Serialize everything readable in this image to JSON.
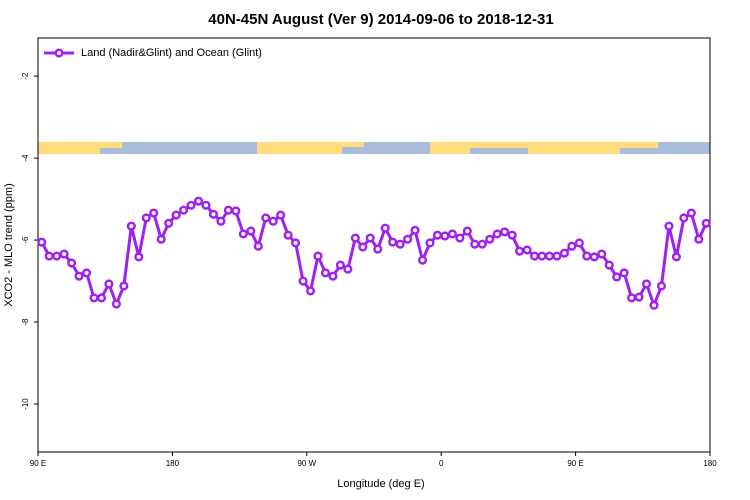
{
  "chart_data": {
    "type": "line",
    "title": "40N-45N August (Ver 9)   2014-09-06 to 2018-12-31",
    "x_label": "Longitude (deg E)",
    "y_label": "XCO2 - MLO trend (ppm)",
    "legend": "top-left",
    "xlim": [
      90,
      540
    ],
    "ylim": [
      -11.17,
      -1.07
    ],
    "xticks": [
      {
        "value": 90,
        "label": "90 E"
      },
      180,
      {
        "value": 270,
        "label": "90 W"
      },
      {
        "value": 360,
        "label": "0"
      },
      {
        "value": 450,
        "label": "90 E"
      },
      {
        "value": 540,
        "label": "180"
      }
    ],
    "yticks": [
      -2,
      -4,
      -6,
      -8,
      -10
    ],
    "x": [
      92.5,
      97.5,
      102.5,
      107.5,
      112.5,
      117.5,
      122.5,
      127.5,
      132.5,
      137.5,
      142.5,
      147.5,
      152.5,
      157.5,
      162.5,
      167.5,
      172.5,
      177.5,
      182.5,
      187.5,
      192.5,
      197.5,
      202.5,
      207.5,
      212.5,
      217.5,
      222.5,
      227.5,
      232.5,
      237.5,
      242.5,
      247.5,
      252.5,
      257.5,
      262.5,
      267.5,
      272.5,
      277.5,
      282.5,
      287.5,
      292.5,
      297.5,
      302.5,
      307.5,
      312.5,
      317.5,
      322.5,
      327.5,
      332.5,
      337.5,
      342.5,
      347.5,
      352.5,
      357.5,
      362.5,
      367.5,
      372.5,
      377.5,
      382.5,
      387.5,
      392.5,
      397.5,
      402.5,
      407.5,
      412.5,
      417.5,
      422.5,
      427.5,
      432.5,
      437.5,
      442.5,
      447.5,
      452.5,
      457.5,
      462.5,
      467.5,
      472.5,
      477.5,
      482.5,
      487.5,
      492.5,
      497.5,
      502.5,
      507.5,
      512.5,
      517.5,
      522.5,
      527.5,
      532.5,
      537.5
    ],
    "series": [
      {
        "name": "Land (Nadir&Glint) and Ocean (Glint)",
        "color": "#a020f0",
        "values": [
          -6.05,
          -6.39,
          -6.39,
          -6.34,
          -6.56,
          -6.88,
          -6.8,
          -7.41,
          -7.41,
          -7.07,
          -7.56,
          -7.12,
          -5.66,
          -6.41,
          -5.46,
          -5.34,
          -5.98,
          -5.59,
          -5.39,
          -5.27,
          -5.15,
          -5.05,
          -5.15,
          -5.37,
          -5.54,
          -5.27,
          -5.29,
          -5.85,
          -5.78,
          -6.15,
          -5.46,
          -5.54,
          -5.39,
          -5.88,
          -6.07,
          -7.0,
          -7.24,
          -6.39,
          -6.8,
          -6.88,
          -6.61,
          -6.71,
          -5.95,
          -6.17,
          -5.95,
          -6.22,
          -5.71,
          -6.05,
          -6.1,
          -5.98,
          -5.76,
          -6.49,
          -6.07,
          -5.88,
          -5.9,
          -5.85,
          -5.95,
          -5.78,
          -6.1,
          -6.1,
          -5.98,
          -5.85,
          -5.8,
          -5.88,
          -6.27,
          -6.24,
          -6.39,
          -6.39,
          -6.39,
          -6.39,
          -6.32,
          -6.15,
          -6.07,
          -6.39,
          -6.41,
          -6.34,
          -6.61,
          -6.9,
          -6.8,
          -7.41,
          -7.39,
          -7.07,
          -7.59,
          -7.12,
          -5.66,
          -6.41,
          -5.46,
          -5.34,
          -5.98,
          -5.59
        ]
      }
    ]
  }
}
